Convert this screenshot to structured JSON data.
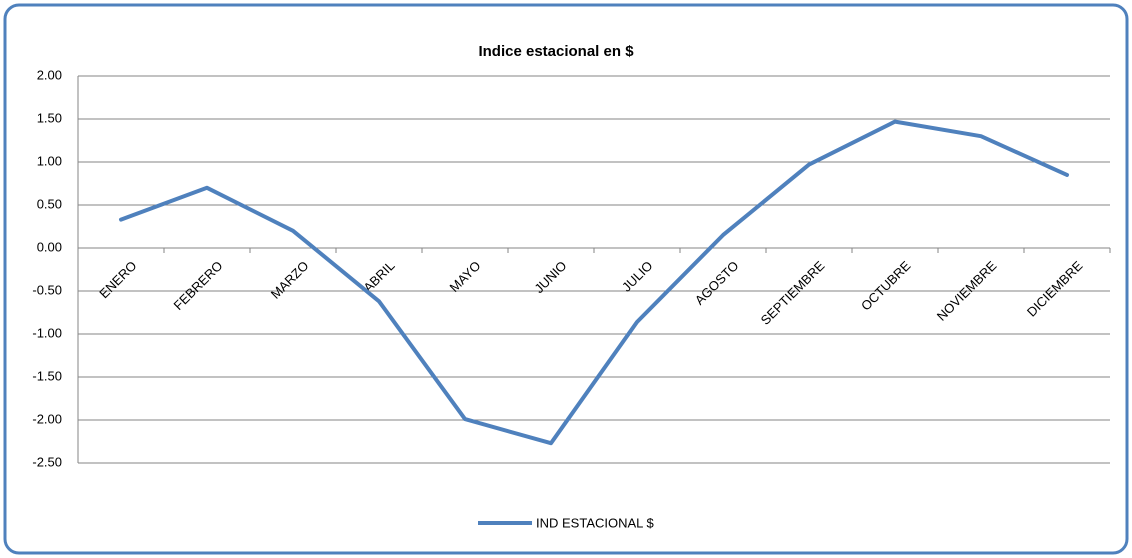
{
  "chart_data": {
    "type": "line",
    "title": "Indice estacional en $",
    "categories": [
      "ENERO",
      "FEBRERO",
      "MARZO",
      "ABRIL",
      "MAYO",
      "JUNIO",
      "JULIO",
      "AGOSTO",
      "SEPTIEMBRE",
      "OCTUBRE",
      "NOVIEMBRE",
      "DICIEMBRE"
    ],
    "series": [
      {
        "name": "IND ESTACIONAL $",
        "color": "#4f81bd",
        "values": [
          0.33,
          0.7,
          0.2,
          -0.62,
          -1.99,
          -2.27,
          -0.86,
          0.15,
          0.97,
          1.47,
          1.3,
          0.85
        ]
      }
    ],
    "ylim": [
      -2.5,
      2.0
    ],
    "yticks": [
      {
        "value": -2.5,
        "label": "-2.50"
      },
      {
        "value": -2.0,
        "label": "-2.00"
      },
      {
        "value": -1.5,
        "label": "-1.50"
      },
      {
        "value": -1.0,
        "label": "-1.00"
      },
      {
        "value": -0.5,
        "label": "-0.50"
      },
      {
        "value": 0,
        "label": "0.00"
      },
      {
        "value": 0.5,
        "label": "0.50"
      },
      {
        "value": 1.0,
        "label": "1.00"
      },
      {
        "value": 1.5,
        "label": "1.50"
      },
      {
        "value": 2.0,
        "label": "2.00"
      }
    ],
    "grid": true,
    "legend": "bottom"
  }
}
